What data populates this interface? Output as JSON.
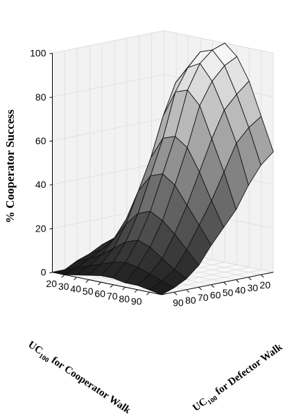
{
  "chart_data": {
    "type": "surface3d",
    "zlabel": "% Cooperator Success",
    "xlabel": {
      "prefix": "UC",
      "sub": "100",
      "suffix": " for Cooperator Walk"
    },
    "ylabel": {
      "prefix": "UC",
      "sub": "100",
      "suffix": " for Defector Walk"
    },
    "x_ticks": [
      "20",
      "30",
      "40",
      "50",
      "60",
      "70",
      "80",
      "90"
    ],
    "y_ticks": [
      "90",
      "80",
      "70",
      "60",
      "50",
      "40",
      "30",
      "20"
    ],
    "z_ticks": [
      "0",
      "20",
      "40",
      "60",
      "80",
      "100"
    ],
    "zlim": [
      0,
      100
    ],
    "x": [
      10,
      20,
      30,
      40,
      50,
      60,
      70,
      80,
      90,
      100
    ],
    "y": [
      10,
      20,
      30,
      40,
      50,
      60,
      70,
      80,
      90,
      100
    ],
    "z": [
      [
        50,
        55,
        65,
        80,
        92,
        100,
        95,
        85,
        70,
        55
      ],
      [
        40,
        60,
        75,
        88,
        96,
        98,
        92,
        80,
        66,
        50
      ],
      [
        20,
        45,
        65,
        82,
        90,
        93,
        86,
        74,
        60,
        42
      ],
      [
        12,
        25,
        48,
        68,
        80,
        82,
        76,
        62,
        48,
        32
      ],
      [
        10,
        18,
        33,
        50,
        60,
        62,
        58,
        48,
        36,
        25
      ],
      [
        8,
        12,
        22,
        36,
        44,
        46,
        42,
        34,
        26,
        18
      ],
      [
        5,
        8,
        14,
        22,
        28,
        30,
        27,
        22,
        16,
        10
      ],
      [
        3,
        5,
        8,
        12,
        16,
        18,
        16,
        12,
        8,
        5
      ],
      [
        0,
        2,
        4,
        6,
        8,
        9,
        8,
        6,
        4,
        2
      ],
      [
        0,
        0,
        1,
        2,
        3,
        3,
        2,
        2,
        1,
        0
      ]
    ],
    "colormap": "gray"
  }
}
